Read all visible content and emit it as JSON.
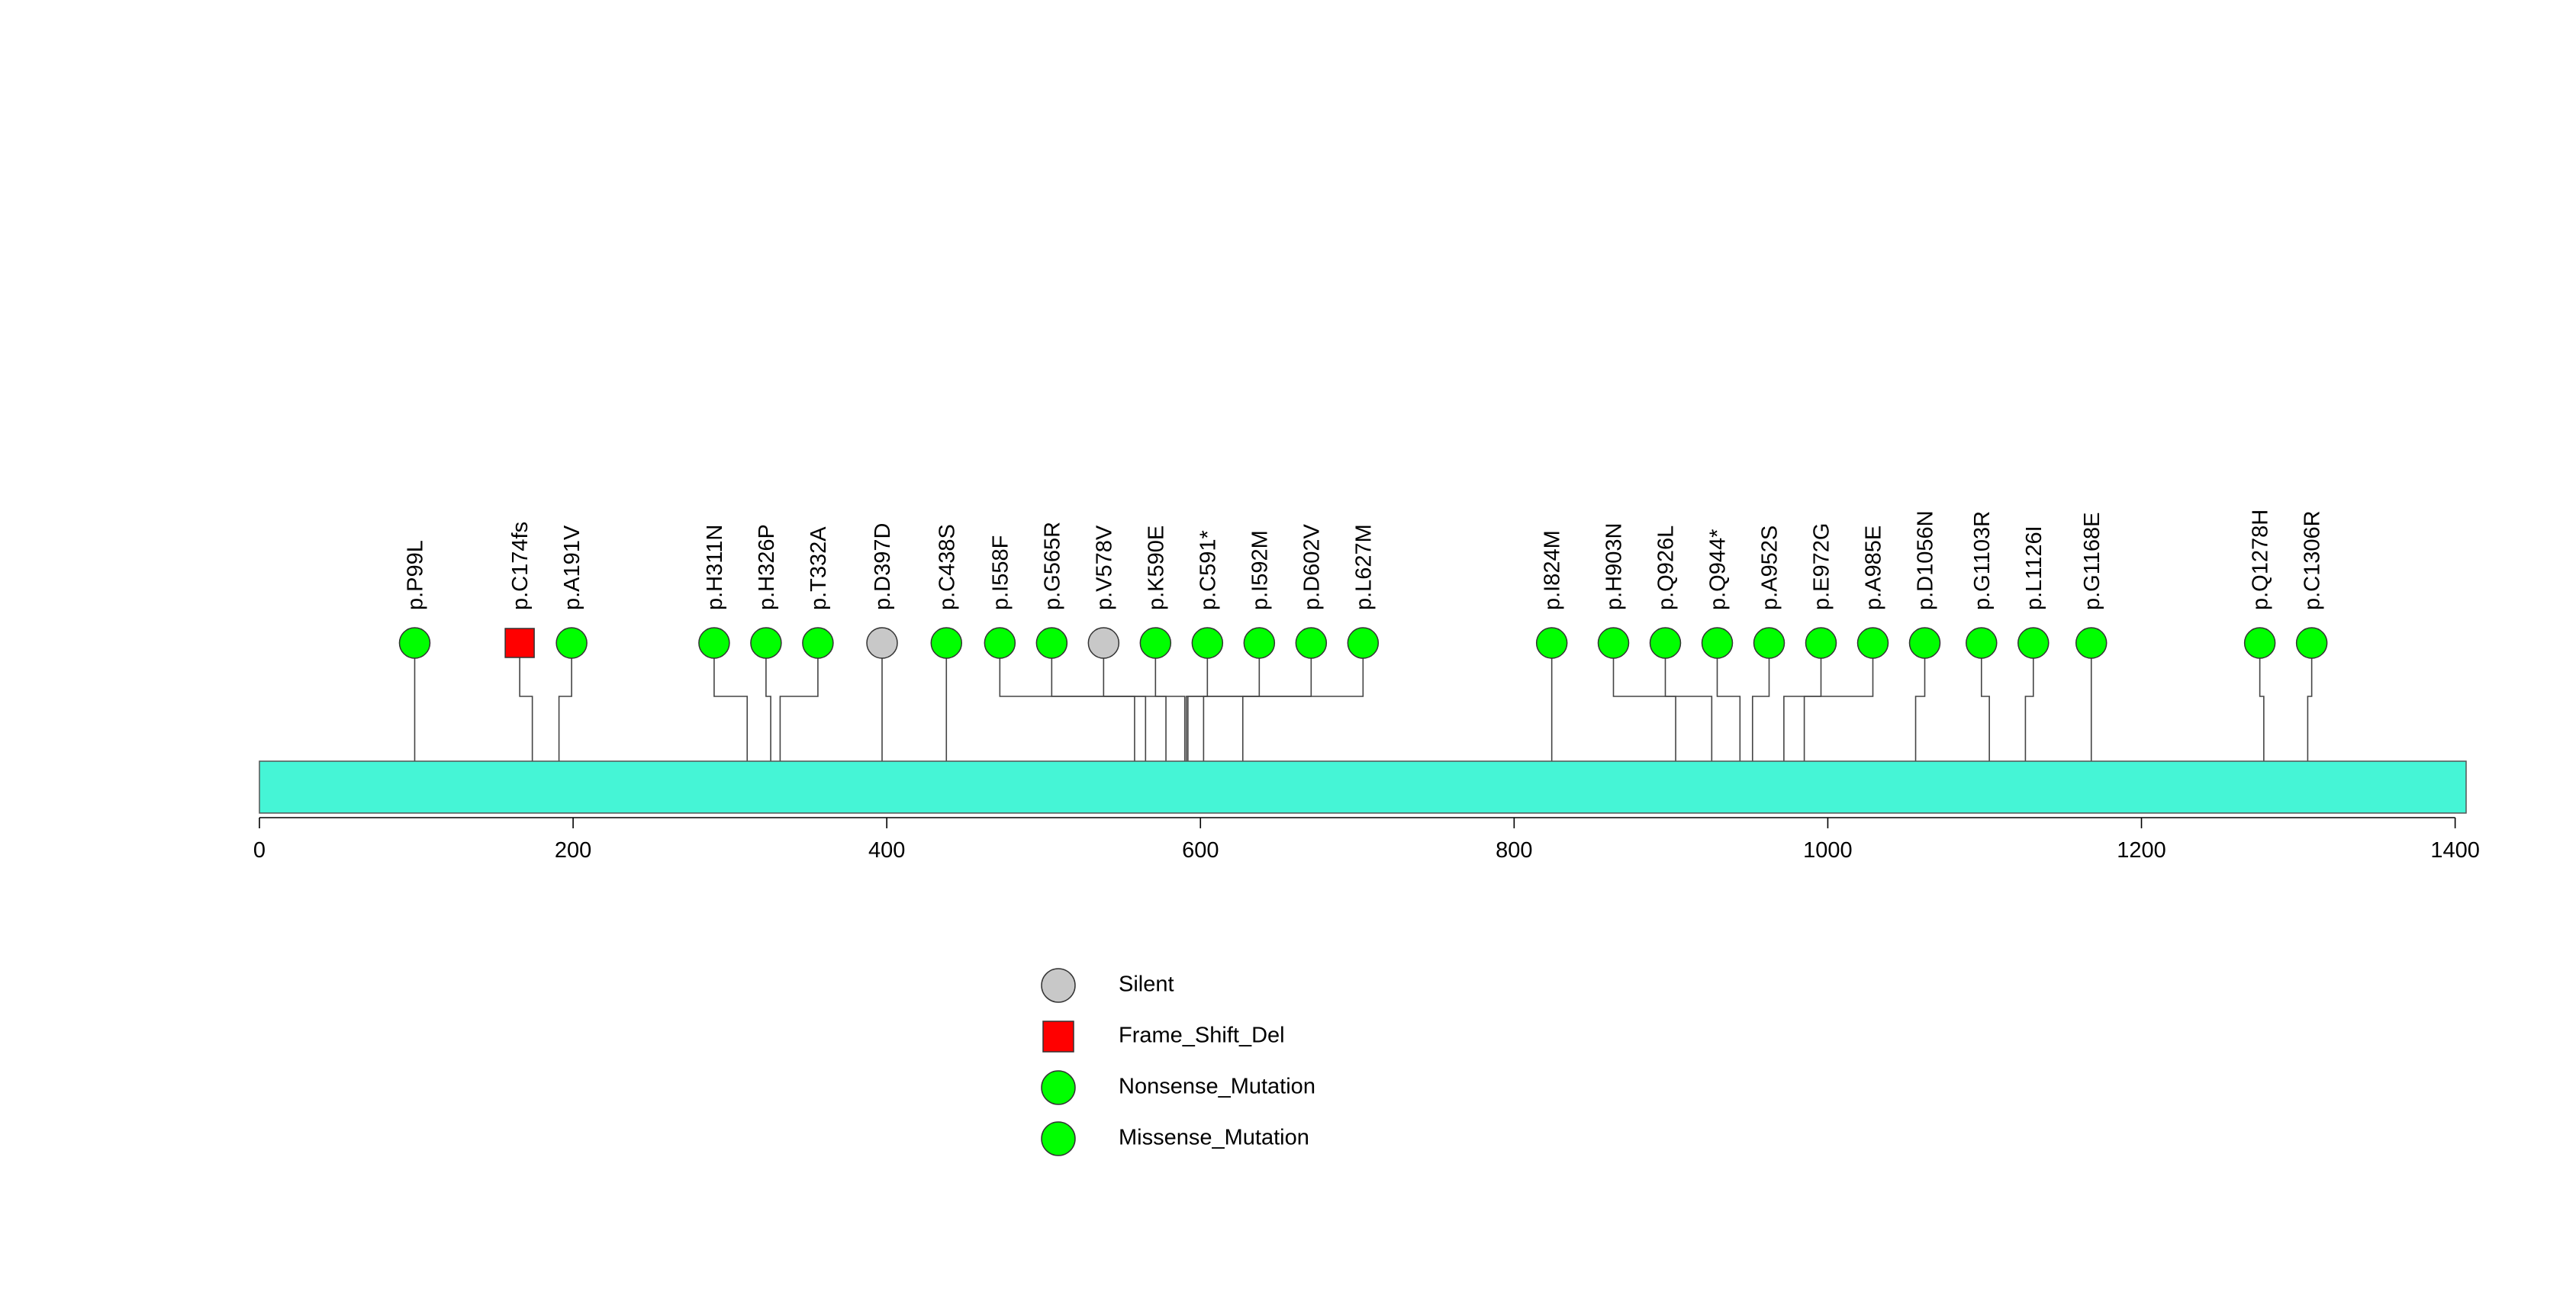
{
  "chart_data": {
    "type": "lollipop",
    "title": "",
    "xlabel": "",
    "ylabel": "",
    "protein_length": 1407,
    "xlim": [
      0,
      1407
    ],
    "ticks": [
      0,
      200,
      400,
      600,
      800,
      1000,
      1200,
      1400
    ],
    "domain_color": "#45F5D6",
    "colors": {
      "Silent": "#C8C8C8",
      "Frame_Shift_Del": "#FF0000",
      "Nonsense_Mutation": "#00FF00",
      "Missense_Mutation": "#00FF00"
    },
    "mutations": [
      {
        "label": "p.P99L",
        "pos": 99,
        "type": "Missense_Mutation"
      },
      {
        "label": "p.C174fs",
        "pos": 174,
        "type": "Frame_Shift_Del"
      },
      {
        "label": "p.A191V",
        "pos": 191,
        "type": "Missense_Mutation"
      },
      {
        "label": "p.H311N",
        "pos": 311,
        "type": "Missense_Mutation"
      },
      {
        "label": "p.H326P",
        "pos": 326,
        "type": "Missense_Mutation"
      },
      {
        "label": "p.T332A",
        "pos": 332,
        "type": "Missense_Mutation"
      },
      {
        "label": "p.D397D",
        "pos": 397,
        "type": "Silent"
      },
      {
        "label": "p.C438S",
        "pos": 438,
        "type": "Missense_Mutation"
      },
      {
        "label": "p.I558F",
        "pos": 558,
        "type": "Missense_Mutation"
      },
      {
        "label": "p.G565R",
        "pos": 565,
        "type": "Missense_Mutation"
      },
      {
        "label": "p.V578V",
        "pos": 578,
        "type": "Silent"
      },
      {
        "label": "p.K590E",
        "pos": 590,
        "type": "Missense_Mutation"
      },
      {
        "label": "p.C591*",
        "pos": 591,
        "type": "Nonsense_Mutation"
      },
      {
        "label": "p.I592M",
        "pos": 592,
        "type": "Missense_Mutation"
      },
      {
        "label": "p.D602V",
        "pos": 602,
        "type": "Missense_Mutation"
      },
      {
        "label": "p.L627M",
        "pos": 627,
        "type": "Missense_Mutation"
      },
      {
        "label": "p.I824M",
        "pos": 824,
        "type": "Missense_Mutation"
      },
      {
        "label": "p.H903N",
        "pos": 903,
        "type": "Missense_Mutation"
      },
      {
        "label": "p.Q926L",
        "pos": 926,
        "type": "Missense_Mutation"
      },
      {
        "label": "p.Q944*",
        "pos": 944,
        "type": "Nonsense_Mutation"
      },
      {
        "label": "p.A952S",
        "pos": 952,
        "type": "Missense_Mutation"
      },
      {
        "label": "p.E972G",
        "pos": 972,
        "type": "Missense_Mutation"
      },
      {
        "label": "p.A985E",
        "pos": 985,
        "type": "Missense_Mutation"
      },
      {
        "label": "p.D1056N",
        "pos": 1056,
        "type": "Missense_Mutation"
      },
      {
        "label": "p.G1103R",
        "pos": 1103,
        "type": "Missense_Mutation"
      },
      {
        "label": "p.L1126I",
        "pos": 1126,
        "type": "Missense_Mutation"
      },
      {
        "label": "p.G1168E",
        "pos": 1168,
        "type": "Missense_Mutation"
      },
      {
        "label": "p.Q1278H",
        "pos": 1278,
        "type": "Missense_Mutation"
      },
      {
        "label": "p.C1306R",
        "pos": 1306,
        "type": "Missense_Mutation"
      }
    ],
    "legend": [
      {
        "label": "Silent",
        "shape": "circle",
        "type": "Silent"
      },
      {
        "label": "Frame_Shift_Del",
        "shape": "square",
        "type": "Frame_Shift_Del"
      },
      {
        "label": "Nonsense_Mutation",
        "shape": "circle",
        "type": "Nonsense_Mutation"
      },
      {
        "label": "Missense_Mutation",
        "shape": "circle",
        "type": "Missense_Mutation"
      }
    ]
  }
}
